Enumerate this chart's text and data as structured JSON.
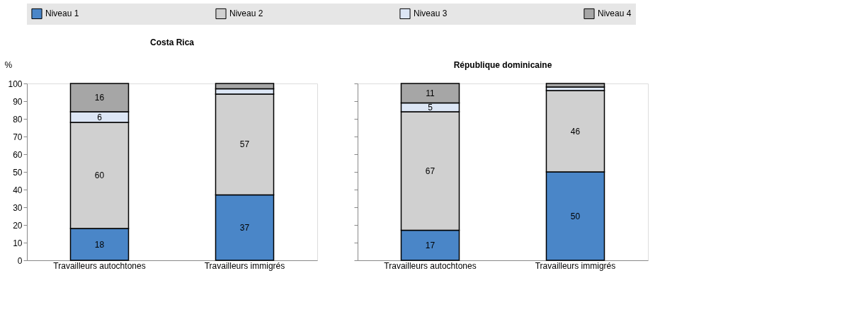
{
  "chart_data": [
    {
      "type": "bar",
      "title": "Costa Rica",
      "ylabel": "%",
      "stacked": true,
      "categories": [
        "Travailleurs autochtones",
        "Travailleurs immigrés"
      ],
      "ylim": [
        0,
        100
      ],
      "yticks": [
        0,
        10,
        20,
        30,
        40,
        50,
        60,
        70,
        80,
        90,
        100
      ],
      "grid": false,
      "legend": "top",
      "series": [
        {
          "name": "Niveau 1",
          "color": "#4a86c8",
          "values": [
            18,
            37
          ],
          "value_labels": [
            "18",
            "37"
          ]
        },
        {
          "name": "Niveau 2",
          "color": "#d0d0d0",
          "values": [
            60,
            57
          ],
          "value_labels": [
            "60",
            "57"
          ]
        },
        {
          "name": "Niveau 3",
          "color": "#dce6f5",
          "values": [
            6,
            3
          ],
          "value_labels": [
            "6",
            null
          ]
        },
        {
          "name": "Niveau 4",
          "color": "#a6a6a6",
          "values": [
            16,
            3
          ],
          "value_labels": [
            "16",
            null
          ]
        }
      ]
    },
    {
      "type": "bar",
      "title": "République dominicaine",
      "stacked": true,
      "categories": [
        "Travailleurs autochtones",
        "Travailleurs immigrés"
      ],
      "ylim": [
        0,
        100
      ],
      "yticks": [
        0,
        10,
        20,
        30,
        40,
        50,
        60,
        70,
        80,
        90,
        100
      ],
      "grid": false,
      "tick_labels": "x",
      "series": [
        {
          "name": "Niveau 1",
          "color": "#4a86c8",
          "values": [
            17,
            50
          ],
          "value_labels": [
            "17",
            "50"
          ]
        },
        {
          "name": "Niveau 2",
          "color": "#d0d0d0",
          "values": [
            67,
            46
          ],
          "value_labels": [
            "67",
            "46"
          ]
        },
        {
          "name": "Niveau 3",
          "color": "#dce6f5",
          "values": [
            5,
            2
          ],
          "value_labels": [
            "5",
            null
          ]
        },
        {
          "name": "Niveau 4",
          "color": "#a6a6a6",
          "values": [
            11,
            2
          ],
          "value_labels": [
            "11",
            null
          ]
        }
      ]
    }
  ]
}
